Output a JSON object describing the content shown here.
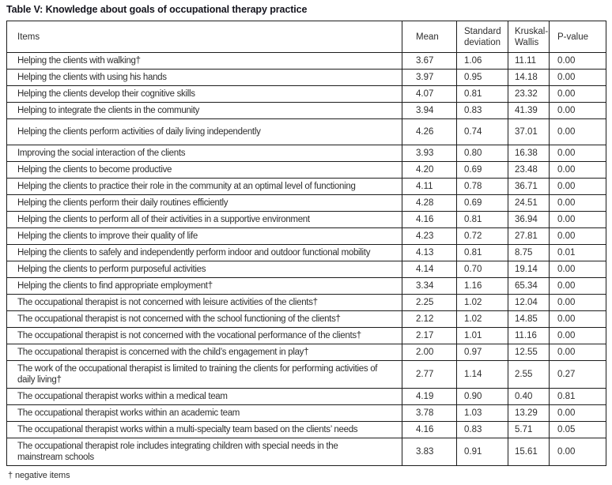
{
  "title": "Table V: Knowledge about goals of occupational therapy practice",
  "footnote": "† negative items",
  "table": {
    "headers": {
      "items": "Items",
      "mean": "Mean",
      "sd": "Standard\ndeviation",
      "kw": "Kruskal-\nWallis",
      "p": "P-value"
    },
    "rows": [
      {
        "item": "Helping the clients with walking†",
        "mean": "3.67",
        "sd": "1.06",
        "kw": "11.11",
        "p": "0.00"
      },
      {
        "item": "Helping the clients with using his hands",
        "mean": "3.97",
        "sd": "0.95",
        "kw": "14.18",
        "p": "0.00"
      },
      {
        "item": "Helping the clients develop their cognitive skills",
        "mean": "4.07",
        "sd": "0.81",
        "kw": "23.32",
        "p": "0.00"
      },
      {
        "item": "Helping to integrate the clients in the community",
        "mean": "3.94",
        "sd": "0.83",
        "kw": "41.39",
        "p": "0.00"
      },
      {
        "item": "Helping the clients perform activities of daily living independently",
        "mean": "4.26",
        "sd": "0.74",
        "kw": "37.01",
        "p": "0.00"
      },
      {
        "item": "Improving the social interaction of the clients",
        "mean": "3.93",
        "sd": "0.80",
        "kw": "16.38",
        "p": "0.00"
      },
      {
        "item": "Helping the clients to become productive",
        "mean": "4.20",
        "sd": "0.69",
        "kw": "23.48",
        "p": "0.00"
      },
      {
        "item": "Helping the clients to practice their role in the community at an optimal level of functioning",
        "mean": "4.11",
        "sd": "0.78",
        "kw": "36.71",
        "p": "0.00"
      },
      {
        "item": "Helping the clients perform their daily routines efficiently",
        "mean": "4.28",
        "sd": "0.69",
        "kw": "24.51",
        "p": "0.00"
      },
      {
        "item": "Helping the clients to perform all of their activities in a supportive environment",
        "mean": "4.16",
        "sd": "0.81",
        "kw": "36.94",
        "p": "0.00"
      },
      {
        "item": "Helping the clients to improve their quality of life",
        "mean": "4.23",
        "sd": "0.72",
        "kw": "27.81",
        "p": "0.00"
      },
      {
        "item": "Helping the clients to safely and independently perform indoor and outdoor functional mobility",
        "mean": "4.13",
        "sd": "0.81",
        "kw": "8.75",
        "p": "0.01"
      },
      {
        "item": "Helping the clients to perform purposeful activities",
        "mean": "4.14",
        "sd": "0.70",
        "kw": "19.14",
        "p": "0.00"
      },
      {
        "item": "Helping the clients to find appropriate employment†",
        "mean": "3.34",
        "sd": "1.16",
        "kw": "65.34",
        "p": "0.00"
      },
      {
        "item": "The occupational therapist is not concerned with leisure activities of the clients†",
        "mean": "2.25",
        "sd": "1.02",
        "kw": "12.04",
        "p": "0.00"
      },
      {
        "item": "The occupational therapist is not concerned with the school functioning of the clients†",
        "mean": "2.12",
        "sd": "1.02",
        "kw": "14.85",
        "p": "0.00"
      },
      {
        "item": "The occupational therapist is not concerned with the vocational performance of the clients†",
        "mean": "2.17",
        "sd": "1.01",
        "kw": "11.16",
        "p": "0.00"
      },
      {
        "item": "The occupational therapist is concerned with the child’s engagement in play†",
        "mean": "2.00",
        "sd": "0.97",
        "kw": "12.55",
        "p": "0.00"
      },
      {
        "item": "The work of the occupational therapist is limited to training the clients for performing activities of\ndaily living†",
        "mean": "2.77",
        "sd": "1.14",
        "kw": "2.55",
        "p": "0.27"
      },
      {
        "item": "The occupational therapist works within a medical team",
        "mean": "4.19",
        "sd": "0.90",
        "kw": "0.40",
        "p": "0.81"
      },
      {
        "item": "The occupational therapist works within an academic team",
        "mean": "3.78",
        "sd": "1.03",
        "kw": "13.29",
        "p": "0.00"
      },
      {
        "item": "The occupational therapist works within a multi-specialty team based on the clients’ needs",
        "mean": "4.16",
        "sd": "0.83",
        "kw": "5.71",
        "p": "0.05"
      },
      {
        "item": "The occupational therapist role includes integrating children with special needs in the\nmainstream schools",
        "mean": "3.83",
        "sd": "0.91",
        "kw": "15.61",
        "p": "0.00"
      }
    ]
  }
}
